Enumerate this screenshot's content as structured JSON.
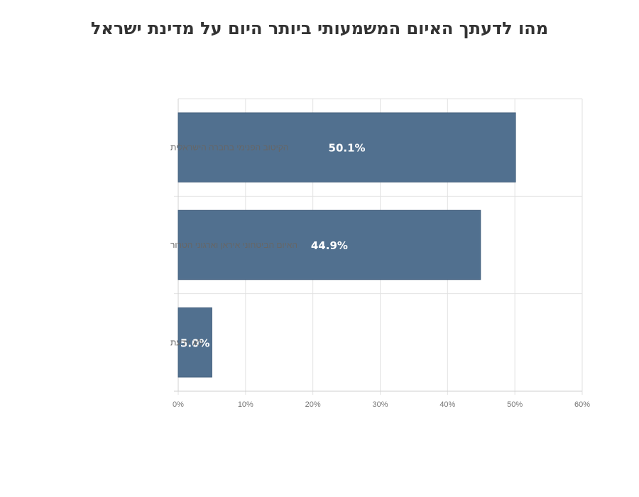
{
  "chart_data": {
    "type": "bar",
    "orientation": "horizontal",
    "title": "מהו לדעתך האיום המשמעותי ביותר היום על מדינת ישראל",
    "categories": [
      "הקיטוב הפנימי בחברה הישראלית",
      "האיום הביטחוני איראן וארגוני הטרור",
      "לא יודעת"
    ],
    "values": [
      50.1,
      44.9,
      5.0
    ],
    "data_labels": [
      "50.1%",
      "44.9%",
      "5.0%"
    ],
    "xlim": [
      0,
      60
    ],
    "xticks": [
      "0%",
      "10%",
      "20%",
      "30%",
      "40%",
      "50%",
      "60%"
    ],
    "grid": true,
    "legend": "none",
    "bar_color": "#51708f",
    "xlabel": "",
    "ylabel": ""
  }
}
